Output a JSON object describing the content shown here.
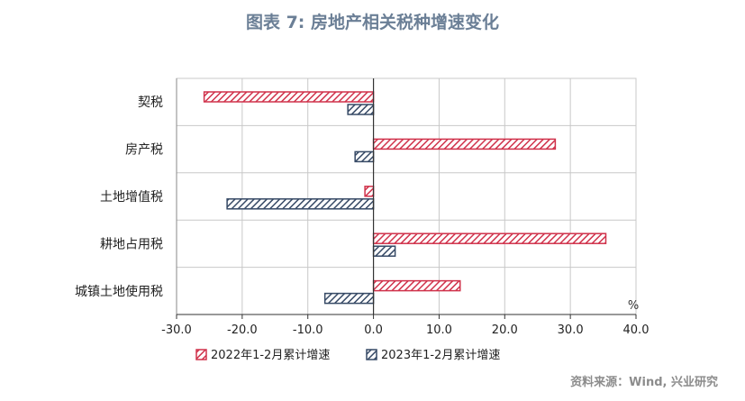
{
  "colors": {
    "series_2022": "#d0324b",
    "series_2023": "#374a66",
    "title": "#6b7f96",
    "grid": "#c8c8c8"
  },
  "chart_data": {
    "type": "bar",
    "orientation": "horizontal",
    "title": "图表 7:  房地产相关税种增速变化",
    "categories": [
      "契税",
      "房产税",
      "土地增值税",
      "耕地占用税",
      "城镇土地使用税"
    ],
    "series": [
      {
        "name": "2022年1-2月累计增速",
        "values": [
          -25.8,
          27.7,
          -1.3,
          35.4,
          13.2
        ],
        "color": "#d0324b",
        "pattern": "hatch"
      },
      {
        "name": "2023年1-2月累计增速",
        "values": [
          -3.9,
          -2.8,
          -22.3,
          3.3,
          -7.4
        ],
        "color": "#374a66",
        "pattern": "hatch"
      }
    ],
    "xlim": [
      -30,
      40
    ],
    "xticks": [
      "-30.0",
      "-20.0",
      "-10.0",
      "0.0",
      "10.0",
      "20.0",
      "30.0",
      "40.0"
    ],
    "unit": "%",
    "grid": true,
    "legend_position": "bottom",
    "source": "资料来源：Wind, 兴业研究"
  }
}
